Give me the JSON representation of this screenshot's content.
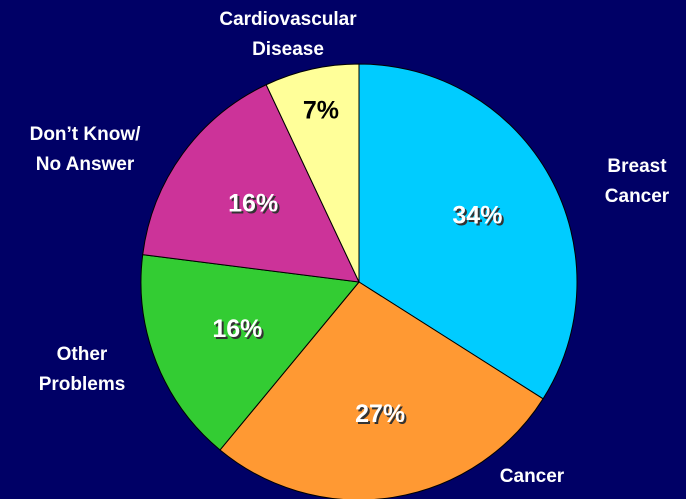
{
  "chart_data": {
    "type": "pie",
    "categories": [
      [
        "Breast",
        "Cancer"
      ],
      [
        "Cancer"
      ],
      [
        "Other",
        "Problems"
      ],
      [
        "Don’t Know/",
        "No Answer"
      ],
      [
        "Cardiovascular",
        "Disease"
      ]
    ],
    "values": [
      34,
      27,
      16,
      16,
      7
    ],
    "value_labels": [
      "34%",
      "27%",
      "16%",
      "16%",
      "7%"
    ],
    "colors": [
      "#00ccff",
      "#ff9933",
      "#33cc33",
      "#cc3399",
      "#ffff99"
    ]
  }
}
